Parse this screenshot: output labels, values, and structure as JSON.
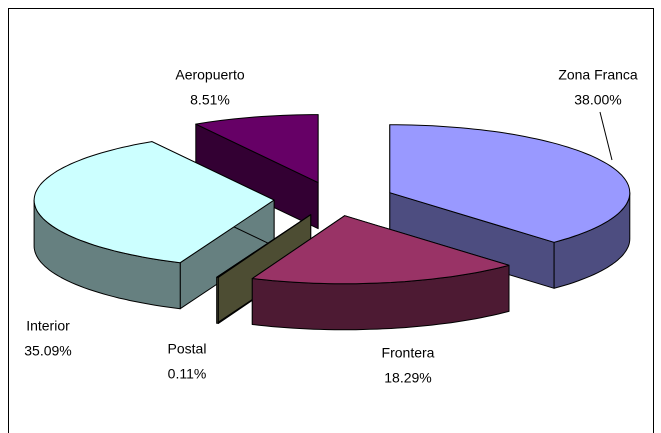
{
  "chart_data": {
    "type": "pie3d",
    "categories": [
      "Zona Franca",
      "Frontera",
      "Postal",
      "Interior",
      "Aeropuerto"
    ],
    "values": [
      38.0,
      18.29,
      0.11,
      35.09,
      8.51
    ],
    "value_labels": [
      "38.00%",
      "18.29%",
      "0.11%",
      "35.09%",
      "8.51%"
    ],
    "colors": [
      "#9999ff",
      "#993366",
      "#999966",
      "#ccffff",
      "#660066"
    ]
  }
}
